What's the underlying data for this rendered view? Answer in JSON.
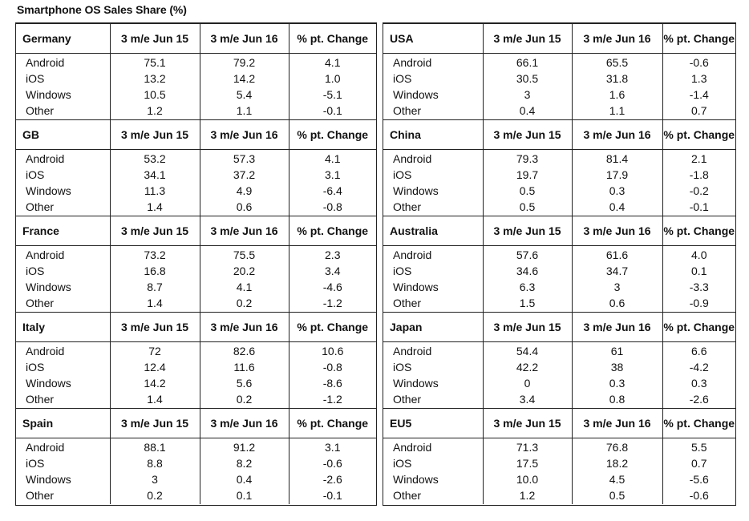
{
  "title": "Smartphone OS Sales Share (%)",
  "chart_data": {
    "type": "table",
    "title": "Smartphone OS Sales Share (%)",
    "columns": [
      "3 m/e Jun 15",
      "3 m/e Jun 16",
      "% pt. Change"
    ],
    "left_panel": [
      {
        "region": "Germany",
        "rows": [
          {
            "os": "Android",
            "v1": "75.1",
            "v2": "79.2",
            "chg": "4.1"
          },
          {
            "os": "iOS",
            "v1": "13.2",
            "v2": "14.2",
            "chg": "1.0"
          },
          {
            "os": "Windows",
            "v1": "10.5",
            "v2": "5.4",
            "chg": "-5.1"
          },
          {
            "os": "Other",
            "v1": "1.2",
            "v2": "1.1",
            "chg": "-0.1"
          }
        ]
      },
      {
        "region": "GB",
        "rows": [
          {
            "os": "Android",
            "v1": "53.2",
            "v2": "57.3",
            "chg": "4.1"
          },
          {
            "os": "iOS",
            "v1": "34.1",
            "v2": "37.2",
            "chg": "3.1"
          },
          {
            "os": "Windows",
            "v1": "11.3",
            "v2": "4.9",
            "chg": "-6.4"
          },
          {
            "os": "Other",
            "v1": "1.4",
            "v2": "0.6",
            "chg": "-0.8"
          }
        ]
      },
      {
        "region": "France",
        "rows": [
          {
            "os": "Android",
            "v1": "73.2",
            "v2": "75.5",
            "chg": "2.3"
          },
          {
            "os": "iOS",
            "v1": "16.8",
            "v2": "20.2",
            "chg": "3.4"
          },
          {
            "os": "Windows",
            "v1": "8.7",
            "v2": "4.1",
            "chg": "-4.6"
          },
          {
            "os": "Other",
            "v1": "1.4",
            "v2": "0.2",
            "chg": "-1.2"
          }
        ]
      },
      {
        "region": "Italy",
        "rows": [
          {
            "os": "Android",
            "v1": "72",
            "v2": "82.6",
            "chg": "10.6"
          },
          {
            "os": "iOS",
            "v1": "12.4",
            "v2": "11.6",
            "chg": "-0.8"
          },
          {
            "os": "Windows",
            "v1": "14.2",
            "v2": "5.6",
            "chg": "-8.6"
          },
          {
            "os": "Other",
            "v1": "1.4",
            "v2": "0.2",
            "chg": "-1.2"
          }
        ]
      },
      {
        "region": "Spain",
        "rows": [
          {
            "os": "Android",
            "v1": "88.1",
            "v2": "91.2",
            "chg": "3.1"
          },
          {
            "os": "iOS",
            "v1": "8.8",
            "v2": "8.2",
            "chg": "-0.6"
          },
          {
            "os": "Windows",
            "v1": "3",
            "v2": "0.4",
            "chg": "-2.6"
          },
          {
            "os": "Other",
            "v1": "0.2",
            "v2": "0.1",
            "chg": "-0.1"
          }
        ]
      }
    ],
    "right_panel": [
      {
        "region": "USA",
        "rows": [
          {
            "os": "Android",
            "v1": "66.1",
            "v2": "65.5",
            "chg": "-0.6"
          },
          {
            "os": "iOS",
            "v1": "30.5",
            "v2": "31.8",
            "chg": "1.3"
          },
          {
            "os": "Windows",
            "v1": "3",
            "v2": "1.6",
            "chg": "-1.4"
          },
          {
            "os": "Other",
            "v1": "0.4",
            "v2": "1.1",
            "chg": "0.7"
          }
        ]
      },
      {
        "region": "China",
        "rows": [
          {
            "os": "Android",
            "v1": "79.3",
            "v2": "81.4",
            "chg": "2.1"
          },
          {
            "os": "iOS",
            "v1": "19.7",
            "v2": "17.9",
            "chg": "-1.8"
          },
          {
            "os": "Windows",
            "v1": "0.5",
            "v2": "0.3",
            "chg": "-0.2"
          },
          {
            "os": "Other",
            "v1": "0.5",
            "v2": "0.4",
            "chg": "-0.1"
          }
        ]
      },
      {
        "region": "Australia",
        "rows": [
          {
            "os": "Android",
            "v1": "57.6",
            "v2": "61.6",
            "chg": "4.0"
          },
          {
            "os": "iOS",
            "v1": "34.6",
            "v2": "34.7",
            "chg": "0.1"
          },
          {
            "os": "Windows",
            "v1": "6.3",
            "v2": "3",
            "chg": "-3.3"
          },
          {
            "os": "Other",
            "v1": "1.5",
            "v2": "0.6",
            "chg": "-0.9"
          }
        ]
      },
      {
        "region": "Japan",
        "rows": [
          {
            "os": "Android",
            "v1": "54.4",
            "v2": "61",
            "chg": "6.6"
          },
          {
            "os": "iOS",
            "v1": "42.2",
            "v2": "38",
            "chg": "-4.2"
          },
          {
            "os": "Windows",
            "v1": "0",
            "v2": "0.3",
            "chg": "0.3"
          },
          {
            "os": "Other",
            "v1": "3.4",
            "v2": "0.8",
            "chg": "-2.6"
          }
        ]
      },
      {
        "region": "EU5",
        "rows": [
          {
            "os": "Android",
            "v1": "71.3",
            "v2": "76.8",
            "chg": "5.5"
          },
          {
            "os": "iOS",
            "v1": "17.5",
            "v2": "18.2",
            "chg": "0.7"
          },
          {
            "os": "Windows",
            "v1": "10.0",
            "v2": "4.5",
            "chg": "-5.6"
          },
          {
            "os": "Other",
            "v1": "1.2",
            "v2": "0.5",
            "chg": "-0.6"
          }
        ]
      }
    ]
  }
}
